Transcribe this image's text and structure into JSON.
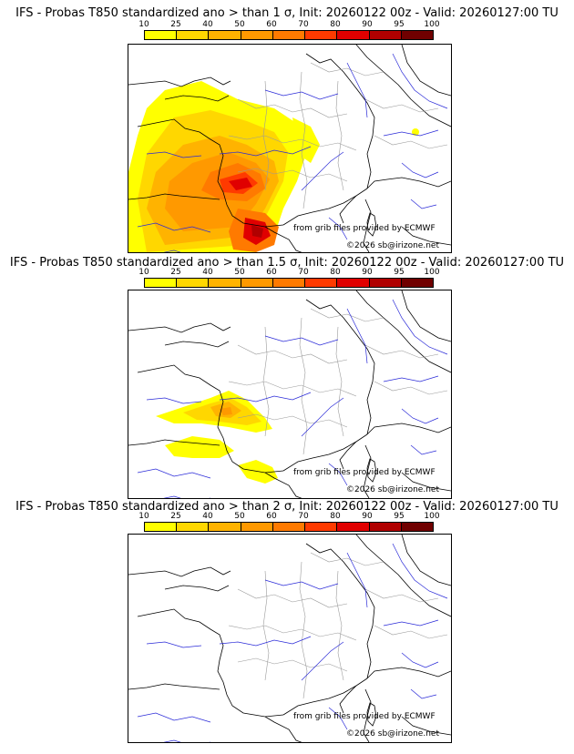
{
  "colorbar": {
    "ticks": [
      "10",
      "25",
      "40",
      "50",
      "60",
      "70",
      "80",
      "90",
      "95",
      "100"
    ],
    "colors": [
      "#ffff00",
      "#ffd700",
      "#ffb300",
      "#ff9900",
      "#ff7a00",
      "#ff3a00",
      "#e00000",
      "#b00000",
      "#700000"
    ]
  },
  "panels": [
    {
      "title": "IFS - Probas T850  standardized ano > than 1 σ, Init: 20260122 00z - Valid: 20260127:00 TU",
      "credit": "from grib files provided by ECMWF",
      "copyright": "©2026 sb@irizone.net"
    },
    {
      "title": "IFS - Probas T850  standardized ano > than 1.5 σ, Init: 20260122 00z - Valid: 20260127:00 TU",
      "credit": "from grib files provided by ECMWF",
      "copyright": "©2026 sb@irizone.net"
    },
    {
      "title": "IFS - Probas T850  standardized ano > than 2 σ, Init: 20260122 00z - Valid: 20260127:00 TU",
      "credit": "from grib files provided by ECMWF",
      "copyright": "©2026 sb@irizone.net"
    }
  ]
}
